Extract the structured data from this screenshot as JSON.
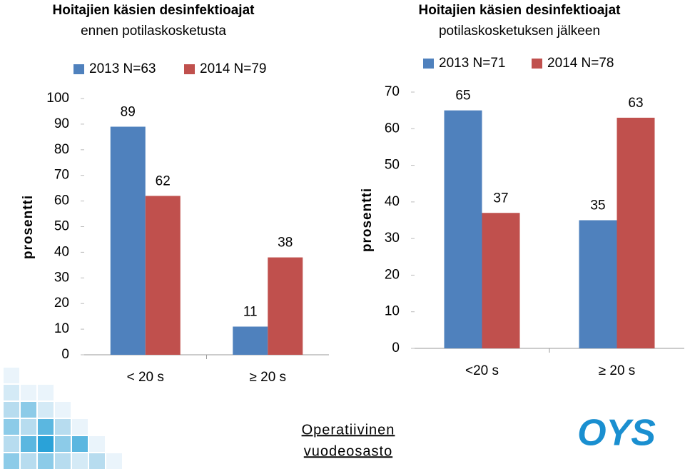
{
  "chart_data": [
    {
      "type": "bar",
      "title": [
        "Hoitajien käsien desinfektioajat",
        "ennen potilaskosketusta"
      ],
      "ylabel": "prosentti",
      "categories": [
        "< 20 s",
        "≥ 20 s"
      ],
      "series": [
        {
          "name": "2013 N=63",
          "color": "#4f81bd",
          "values": [
            89,
            11
          ]
        },
        {
          "name": "2014 N=79",
          "color": "#c0504d",
          "values": [
            62,
            38
          ]
        }
      ],
      "ylim": [
        0,
        100
      ],
      "yticks": [
        0,
        10,
        20,
        30,
        40,
        50,
        60,
        70,
        80,
        90,
        100
      ]
    },
    {
      "type": "bar",
      "title": [
        "Hoitajien käsien desinfektioajat",
        "potilaskosketuksen jälkeen"
      ],
      "ylabel": "prosentti",
      "categories": [
        "<20 s",
        "≥ 20 s"
      ],
      "series": [
        {
          "name": "2013 N=71",
          "color": "#4f81bd",
          "values": [
            65,
            35
          ]
        },
        {
          "name": "2014 N=78",
          "color": "#c0504d",
          "values": [
            37,
            63
          ]
        }
      ],
      "ylim": [
        0,
        70
      ],
      "yticks": [
        0,
        10,
        20,
        30,
        40,
        50,
        60,
        70
      ]
    }
  ],
  "footer": [
    "Operatiivinen",
    "vuodeosasto"
  ],
  "logo": "OYS"
}
